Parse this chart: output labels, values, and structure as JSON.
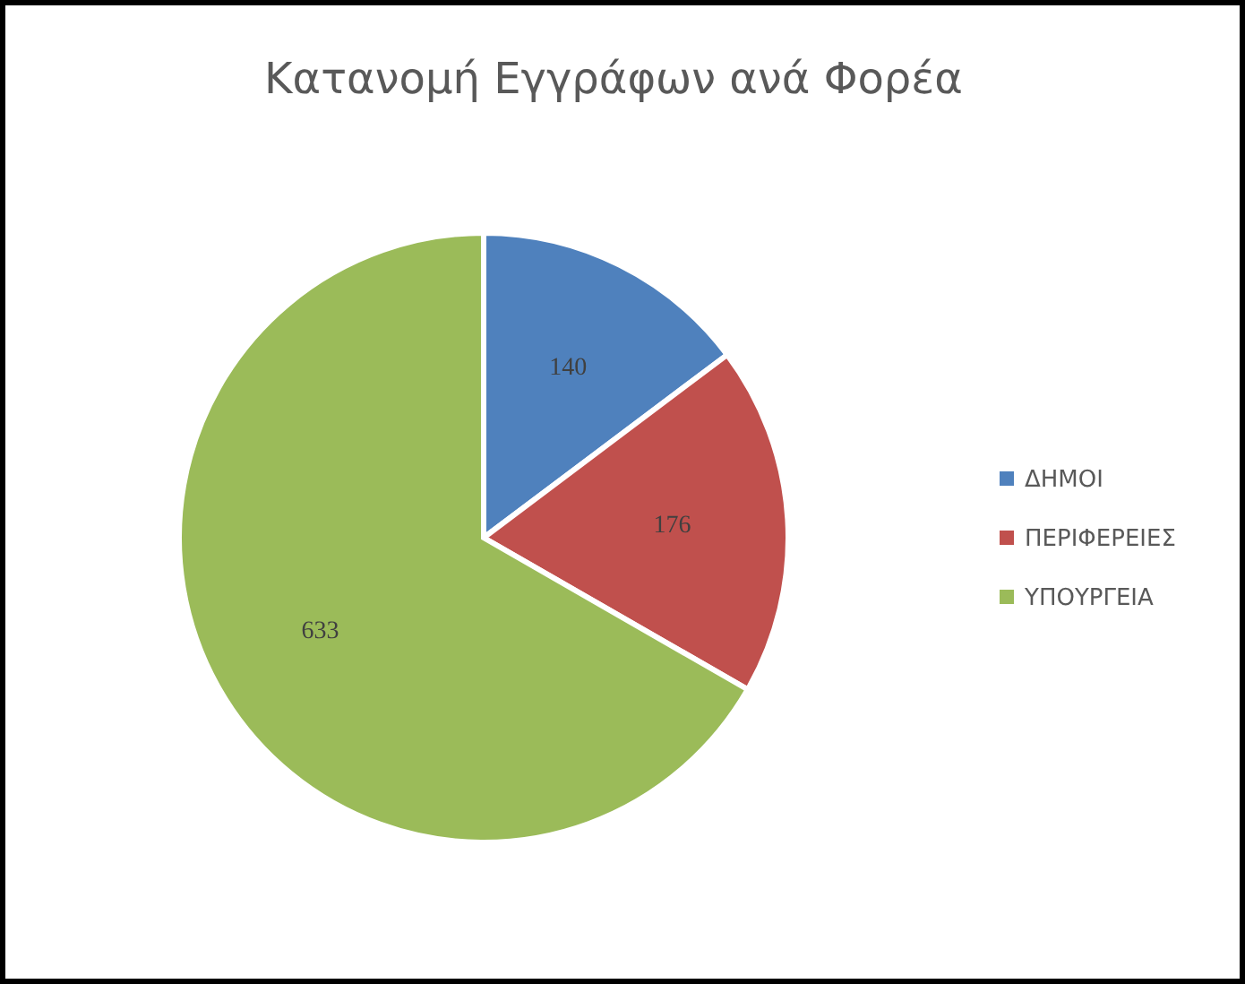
{
  "chart_data": {
    "type": "pie",
    "title": "Κατανομή Εγγράφων ανά Φορέα",
    "categories": [
      "ΔΗΜΟΙ",
      "ΠΕΡΙΦΕΡΕΙΕΣ",
      "ΥΠΟΥΡΓΕΙΑ"
    ],
    "values": [
      140,
      176,
      633
    ],
    "colors": [
      "#4f81bd",
      "#c0504d",
      "#9bbb59"
    ],
    "data_labels": true,
    "legend": "right"
  }
}
